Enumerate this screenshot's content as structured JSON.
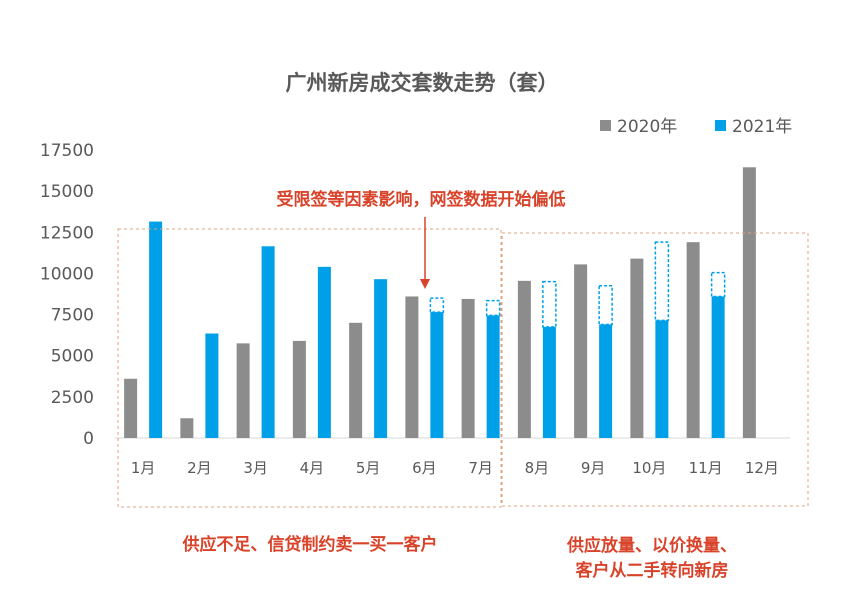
{
  "chart_data": {
    "type": "bar",
    "title": "广州新房成交套数走势（套）",
    "categories": [
      "1月",
      "2月",
      "3月",
      "4月",
      "5月",
      "6月",
      "7月",
      "8月",
      "9月",
      "10月",
      "11月",
      "12月"
    ],
    "series": [
      {
        "name": "2020年",
        "color": "#8c8c8c",
        "values": [
          3600,
          1200,
          5750,
          5900,
          7000,
          8600,
          8450,
          9550,
          10550,
          10900,
          11900,
          16450
        ]
      },
      {
        "name": "2021年",
        "color": "#00a0e9",
        "values": [
          13150,
          6350,
          11650,
          10400,
          9650,
          7650,
          7450,
          6750,
          6900,
          7150,
          8600,
          null
        ]
      }
    ],
    "estimated_gap_tops": [
      null,
      null,
      null,
      null,
      null,
      8500,
      8350,
      9500,
      9250,
      11900,
      10050,
      null
    ],
    "yticks": [
      0,
      2500,
      5000,
      7500,
      10000,
      12500,
      15000,
      17500
    ],
    "ylim": [
      0,
      17500
    ],
    "xlabel": "",
    "ylabel": "",
    "legend": "top-right",
    "annotations": {
      "top_note": "受限签等因素影响，网签数据开始偏低",
      "left_note": "供应不足、信贷制约卖一买一客户",
      "right_note_line1": "供应放量、以价换量、",
      "right_note_line2": "客户从二手转向新房"
    },
    "note_color": "#d8432a"
  }
}
